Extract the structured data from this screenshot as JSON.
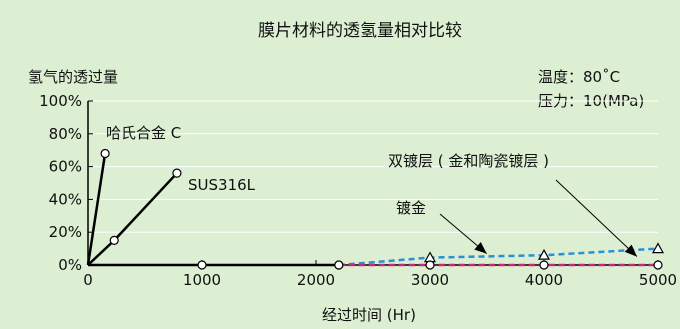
{
  "chart_data": {
    "type": "line",
    "title": "膜片材料的透氢量相对比较",
    "ylabel": "氢气的透过量",
    "xlabel": "经过时间 (Hr)",
    "conditions": [
      "温度：80˚C",
      "压力：10(MPa)"
    ],
    "xlim": [
      0,
      5000
    ],
    "ylim": [
      0,
      100
    ],
    "x_ticks": [
      0,
      1000,
      2000,
      3000,
      4000,
      5000
    ],
    "y_ticks": [
      0,
      20,
      40,
      60,
      80,
      100
    ],
    "x_tick_labels": [
      "0",
      "1000",
      "2000",
      "3000",
      "4000",
      "5000"
    ],
    "y_tick_labels": [
      "0%",
      "20%",
      "40%",
      "60%",
      "80%",
      "100%"
    ],
    "grid": true,
    "series": [
      {
        "name": "哈氏合金 C",
        "color": "#000000",
        "style": "solid",
        "marker": "circle",
        "x": [
          0,
          150
        ],
        "y": [
          0,
          68
        ]
      },
      {
        "name": "SUS316L",
        "color": "#000000",
        "style": "solid",
        "marker": "circle",
        "x": [
          0,
          230,
          780
        ],
        "y": [
          0,
          15,
          56
        ]
      },
      {
        "name": "",
        "color": "#000000",
        "style": "solid",
        "marker": "circle",
        "x": [
          0,
          1000,
          2200
        ],
        "y": [
          0,
          0,
          0
        ]
      },
      {
        "name": "双镀层 (金和陶瓷镀层)",
        "color": "#2a8fd6",
        "style": "dashed",
        "marker": "triangle",
        "x": [
          2200,
          3000,
          4000,
          5000
        ],
        "y": [
          0,
          4.5,
          6,
          10
        ]
      },
      {
        "name": "镀金",
        "color": "#d1247a",
        "style": "dashed",
        "marker": "circle",
        "x": [
          2200,
          3000,
          4000,
          5000
        ],
        "y": [
          0,
          0,
          0,
          0
        ]
      }
    ],
    "annotations": [
      {
        "text": "哈氏合金 C"
      },
      {
        "text": "SUS316L"
      },
      {
        "text": "双镀层 ( 金和陶瓷镀层 )",
        "arrow_x": 4850,
        "arrow_y": 1.5
      },
      {
        "text": "镀金",
        "arrow_x": 3550,
        "arrow_y": 4.5
      }
    ]
  }
}
